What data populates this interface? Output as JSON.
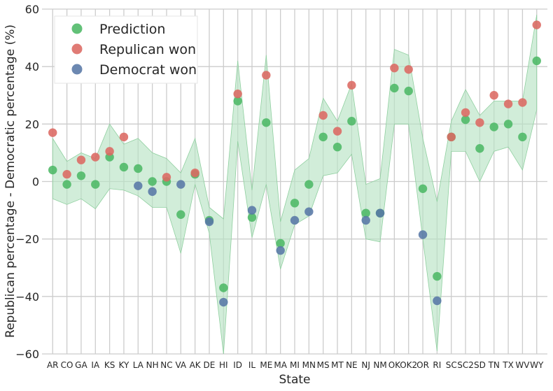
{
  "chart_data": {
    "type": "scatter",
    "xlabel": "State",
    "ylabel": "Republican percentage - Democratic percentage (%)",
    "ylim": [
      -60,
      60
    ],
    "yticks": [
      -60,
      -40,
      -20,
      0,
      20,
      40,
      60
    ],
    "grid": true,
    "legend_position": "top-left",
    "categories": [
      "AR",
      "CO",
      "GA",
      "IA",
      "KS",
      "KY",
      "LA",
      "NH",
      "NC",
      "VA",
      "AK",
      "DE",
      "HI",
      "ID",
      "IL",
      "ME",
      "MA",
      "MI",
      "MN",
      "MS",
      "MT",
      "NE",
      "NJ",
      "NM",
      "OK",
      "OK2",
      "OR",
      "RI",
      "SC",
      "SC2",
      "SD",
      "TN",
      "TX",
      "WV",
      "WY"
    ],
    "series": [
      {
        "name": "Prediction",
        "color": "#4cb865",
        "values": [
          4,
          -1,
          2,
          -1,
          8.5,
          5,
          4.5,
          0,
          0,
          -11.5,
          2.5,
          -13.5,
          -37,
          28,
          -12.5,
          20.5,
          -21.5,
          -7.5,
          -1,
          15.5,
          12,
          21,
          -11,
          -11,
          32.5,
          31.5,
          -2.5,
          -33,
          15.5,
          21.5,
          11.5,
          19,
          20,
          15.5,
          42
        ]
      },
      {
        "name": "Repulican won",
        "color": "#dc6962",
        "values": [
          17,
          2.5,
          7.5,
          8.5,
          10.5,
          15.5,
          null,
          null,
          1.5,
          null,
          3,
          null,
          null,
          30.5,
          null,
          37,
          null,
          null,
          null,
          23,
          17.5,
          33.5,
          null,
          null,
          39.5,
          39,
          null,
          null,
          15.5,
          24,
          20.5,
          30,
          27,
          27.5,
          54.5
        ]
      },
      {
        "name": "Democrat won",
        "color": "#5877a6",
        "values": [
          null,
          null,
          null,
          null,
          null,
          null,
          -1.5,
          -3.5,
          null,
          -1,
          null,
          -14,
          -42,
          null,
          -10,
          null,
          -24,
          -13.5,
          -10.5,
          null,
          null,
          null,
          -13.5,
          -11,
          null,
          null,
          -18.5,
          -41.5,
          null,
          null,
          null,
          null,
          null,
          null,
          null
        ]
      }
    ],
    "band": {
      "color": "#b9e3c4",
      "upper": [
        15,
        7,
        10,
        8,
        20,
        13,
        15,
        10,
        8,
        3,
        15,
        -9,
        -13,
        42,
        -3,
        44,
        -14,
        4,
        8,
        29,
        21,
        34,
        -1,
        1,
        46,
        44,
        15,
        -7,
        21,
        32,
        23,
        28,
        28,
        28,
        58
      ],
      "lower": [
        -6,
        -8,
        -6,
        -9.5,
        -2.5,
        -3,
        -5,
        -9,
        -9,
        -25,
        -1,
        -18,
        -60,
        14,
        -19.5,
        -1,
        -30.5,
        -15,
        -12,
        2,
        3,
        9.5,
        -20,
        -21,
        20,
        20,
        -20,
        -59,
        10.5,
        10.5,
        0,
        10.5,
        12,
        4,
        25
      ]
    }
  }
}
